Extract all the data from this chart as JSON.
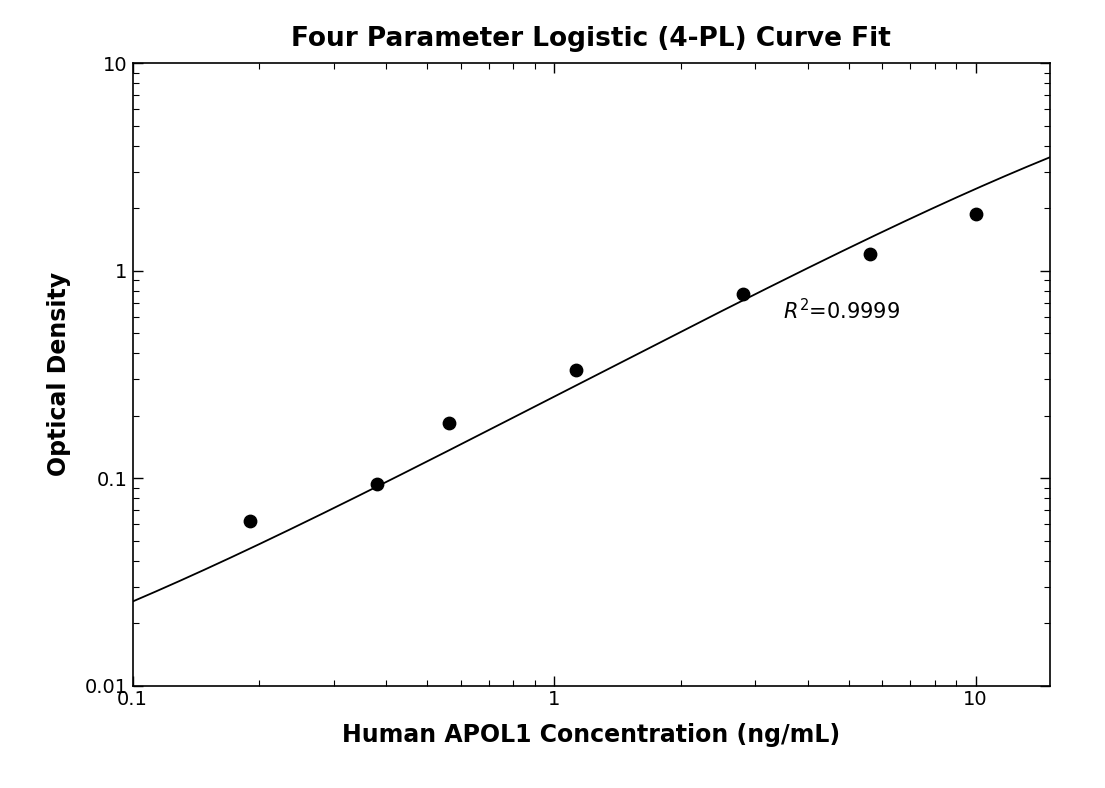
{
  "title": "Four Parameter Logistic (4-PL) Curve Fit",
  "xlabel": "Human APOL1 Concentration (ng/mL)",
  "ylabel": "Optical Density",
  "x_data": [
    0.19,
    0.38,
    0.563,
    1.125,
    2.813,
    5.625,
    10.0
  ],
  "y_data": [
    0.062,
    0.094,
    0.185,
    0.33,
    0.775,
    1.2,
    1.88
  ],
  "xlim": [
    0.1,
    15.0
  ],
  "ylim": [
    0.01,
    10.0
  ],
  "r2_x": 3.5,
  "r2_y": 0.58,
  "4pl_A": 0.005,
  "4pl_D": 15.0,
  "4pl_C": 45.0,
  "4pl_B": 1.08,
  "dot_color": "#000000",
  "line_color": "#000000",
  "dot_size": 80,
  "title_fontsize": 19,
  "label_fontsize": 17,
  "tick_fontsize": 14,
  "annotation_fontsize": 15
}
